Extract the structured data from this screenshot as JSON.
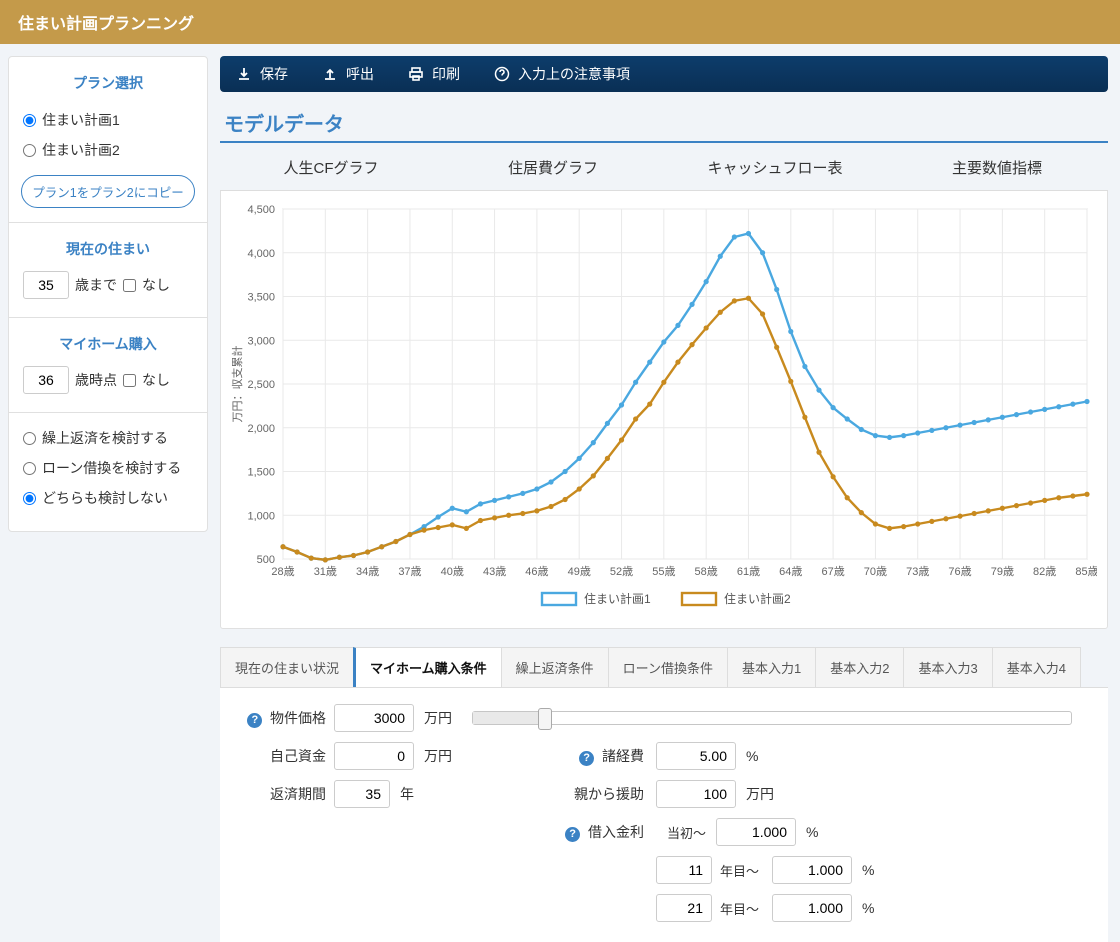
{
  "app": {
    "title": "住まい計画プランニング"
  },
  "sidebar": {
    "plan_select": {
      "title": "プラン選択",
      "opt1": "住まい計画1",
      "opt2": "住まい計画2",
      "copy_button": "プラン1をプラン2にコピー"
    },
    "current_home": {
      "title": "現在の住まい",
      "value": "35",
      "age_suffix": "歳まで",
      "none_label": "なし"
    },
    "buy_home": {
      "title": "マイホーム購入",
      "value": "36",
      "age_suffix": "歳時点",
      "none_label": "なし"
    },
    "options": {
      "prepay": "繰上返済を検討する",
      "refinance": "ローン借換を検討する",
      "neither": "どちらも検討しない"
    }
  },
  "toolbar": {
    "save": "保存",
    "call": "呼出",
    "print": "印刷",
    "notes": "入力上の注意事項"
  },
  "model": {
    "title": "モデルデータ",
    "tabs": [
      "人生CFグラフ",
      "住居費グラフ",
      "キャッシュフロー表",
      "主要数値指標"
    ]
  },
  "chart": {
    "y_label": "万円：収支累計",
    "y_ticks": [
      500,
      1000,
      1500,
      2000,
      2500,
      3000,
      3500,
      4000,
      4500
    ],
    "ylim": [
      500,
      4500
    ],
    "x_categories": [
      "28歳",
      "29歳",
      "30歳",
      "31歳",
      "32歳",
      "33歳",
      "34歳",
      "35歳",
      "36歳",
      "37歳",
      "38歳",
      "39歳",
      "40歳",
      "41歳",
      "42歳",
      "43歳",
      "44歳",
      "45歳",
      "46歳",
      "47歳",
      "48歳",
      "49歳",
      "50歳",
      "51歳",
      "52歳",
      "53歳",
      "54歳",
      "55歳",
      "56歳",
      "57歳",
      "58歳",
      "59歳",
      "60歳",
      "61歳",
      "62歳",
      "63歳",
      "64歳",
      "65歳",
      "66歳",
      "67歳",
      "68歳",
      "69歳",
      "70歳",
      "71歳",
      "72歳",
      "73歳",
      "74歳",
      "75歳",
      "76歳",
      "77歳",
      "78歳",
      "79歳",
      "80歳",
      "81歳",
      "82歳",
      "83歳",
      "84歳",
      "85歳"
    ],
    "x_tick_step": 3,
    "series": [
      {
        "name": "住まい計画1",
        "color": "#4aa8e0",
        "values": [
          640,
          580,
          510,
          490,
          520,
          540,
          580,
          640,
          700,
          780,
          870,
          980,
          1080,
          1040,
          1130,
          1170,
          1210,
          1250,
          1300,
          1380,
          1500,
          1650,
          1830,
          2050,
          2260,
          2520,
          2750,
          2980,
          3170,
          3410,
          3670,
          3960,
          4180,
          4220,
          4000,
          3580,
          3100,
          2700,
          2430,
          2230,
          2100,
          1980,
          1910,
          1890,
          1910,
          1940,
          1970,
          2000,
          2030,
          2060,
          2090,
          2120,
          2150,
          2180,
          2210,
          2240,
          2270,
          2300
        ]
      },
      {
        "name": "住まい計画2",
        "color": "#c88a1e",
        "values": [
          640,
          580,
          510,
          490,
          520,
          540,
          580,
          640,
          700,
          780,
          830,
          860,
          890,
          850,
          940,
          970,
          1000,
          1020,
          1050,
          1100,
          1180,
          1300,
          1450,
          1650,
          1860,
          2100,
          2270,
          2520,
          2750,
          2950,
          3140,
          3320,
          3450,
          3480,
          3300,
          2920,
          2530,
          2120,
          1720,
          1440,
          1200,
          1030,
          900,
          850,
          870,
          900,
          930,
          960,
          990,
          1020,
          1050,
          1080,
          1110,
          1140,
          1170,
          1200,
          1220,
          1240
        ]
      }
    ],
    "grid_color": "#e9e9e9",
    "background": "#ffffff"
  },
  "cond_tabs": [
    "現在の住まい状況",
    "マイホーム購入条件",
    "繰上返済条件",
    "ローン借換条件",
    "基本入力1",
    "基本入力2",
    "基本入力3",
    "基本入力4"
  ],
  "cond_active": 1,
  "cond": {
    "property_price_label": "物件価格",
    "property_price": "3000",
    "yen_unit": "万円",
    "own_funds_label": "自己資金",
    "own_funds": "0",
    "loan_period_label": "返済期間",
    "loan_period": "35",
    "year_unit": "年",
    "misc_cost_label": "諸経費",
    "misc_cost": "5.00",
    "pct_unit": "%",
    "parent_help_label": "親から援助",
    "parent_help": "100",
    "interest_label": "借入金利",
    "rate_initial_label": "当初～",
    "rate_initial": "1.000",
    "rate2_year": "11",
    "rate2_label": "年目～",
    "rate2": "1.000",
    "rate3_year": "21",
    "rate3_label": "年目～",
    "rate3": "1.000",
    "slider_pct": 12
  }
}
